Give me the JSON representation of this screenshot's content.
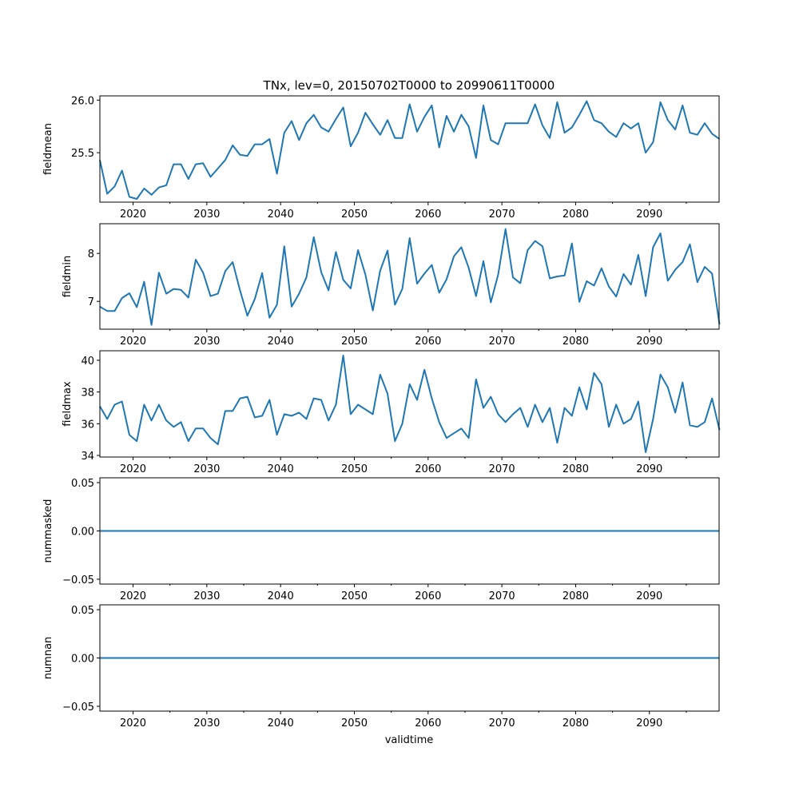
{
  "figure": {
    "title": "TNx, lev=0, 20150702T0000 to 20990611T0000",
    "xlabel": "validtime",
    "line_color": "#1f77b4"
  },
  "chart_data": [
    {
      "type": "line",
      "ylabel": "fieldmean",
      "xlim": [
        2015.5,
        2099.45
      ],
      "ylim": [
        25.03,
        26.04
      ],
      "xticks": [
        2020,
        2030,
        2040,
        2050,
        2060,
        2070,
        2080,
        2090
      ],
      "xtick_labels": [
        "2020",
        "2030",
        "2040",
        "2050",
        "2060",
        "2070",
        "2080",
        "2090"
      ],
      "yticks": [
        25.5,
        26.0
      ],
      "ytick_labels": [
        "25.5",
        "26.0"
      ],
      "x_start": 2015.5,
      "x_step": 1,
      "values": [
        25.43,
        25.11,
        25.18,
        25.33,
        25.08,
        25.06,
        25.16,
        25.1,
        25.17,
        25.19,
        25.39,
        25.39,
        25.25,
        25.39,
        25.4,
        25.27,
        25.35,
        25.43,
        25.57,
        25.48,
        25.47,
        25.58,
        25.58,
        25.63,
        25.3,
        25.69,
        25.8,
        25.62,
        25.78,
        25.86,
        25.74,
        25.7,
        25.82,
        25.93,
        25.56,
        25.69,
        25.88,
        25.77,
        25.67,
        25.81,
        25.64,
        25.64,
        25.96,
        25.7,
        25.84,
        25.95,
        25.55,
        25.85,
        25.7,
        25.86,
        25.75,
        25.45,
        25.95,
        25.62,
        25.58,
        25.78,
        25.78,
        25.78,
        25.78,
        25.96,
        25.76,
        25.64,
        25.98,
        25.69,
        25.74,
        25.86,
        25.99,
        25.81,
        25.78,
        25.7,
        25.65,
        25.78,
        25.73,
        25.78,
        25.5,
        25.6,
        25.98,
        25.81,
        25.72,
        25.95,
        25.69,
        25.67,
        25.78,
        25.68,
        25.63
      ]
    },
    {
      "type": "line",
      "ylabel": "fieldmin",
      "xlim": [
        2015.5,
        2099.45
      ],
      "ylim": [
        6.42,
        8.62
      ],
      "xticks": [
        2020,
        2030,
        2040,
        2050,
        2060,
        2070,
        2080,
        2090
      ],
      "xtick_labels": [
        "2020",
        "2030",
        "2040",
        "2050",
        "2060",
        "2070",
        "2080",
        "2090"
      ],
      "yticks": [
        7,
        8
      ],
      "ytick_labels": [
        "7",
        "8"
      ],
      "x_start": 2015.5,
      "x_step": 1,
      "values": [
        6.89,
        6.8,
        6.8,
        7.07,
        7.17,
        6.88,
        7.41,
        6.51,
        7.6,
        7.16,
        7.26,
        7.24,
        7.08,
        7.87,
        7.6,
        7.11,
        7.16,
        7.63,
        7.82,
        7.23,
        6.7,
        7.05,
        7.59,
        6.66,
        6.93,
        8.15,
        6.89,
        7.16,
        7.5,
        8.34,
        7.61,
        7.23,
        8.03,
        7.45,
        7.27,
        8.07,
        7.56,
        6.81,
        7.64,
        8.06,
        6.93,
        7.26,
        8.32,
        7.37,
        7.58,
        7.76,
        7.18,
        7.46,
        7.94,
        8.13,
        7.7,
        7.11,
        7.84,
        6.98,
        7.56,
        8.51,
        7.5,
        7.38,
        8.07,
        8.26,
        8.15,
        7.48,
        7.52,
        7.54,
        8.21,
        6.99,
        7.42,
        7.33,
        7.69,
        7.31,
        7.1,
        7.57,
        7.35,
        7.97,
        7.11,
        8.13,
        8.42,
        7.43,
        7.66,
        7.82,
        8.19,
        7.4,
        7.72,
        7.58,
        6.52
      ]
    },
    {
      "type": "line",
      "ylabel": "fieldmax",
      "xlim": [
        2015.5,
        2099.45
      ],
      "ylim": [
        33.9,
        40.6
      ],
      "xticks": [
        2020,
        2030,
        2040,
        2050,
        2060,
        2070,
        2080,
        2090
      ],
      "xtick_labels": [
        "2020",
        "2030",
        "2040",
        "2050",
        "2060",
        "2070",
        "2080",
        "2090"
      ],
      "yticks": [
        34,
        36,
        38,
        40
      ],
      "ytick_labels": [
        "34",
        "36",
        "38",
        "40"
      ],
      "x_start": 2015.5,
      "x_step": 1,
      "values": [
        37.1,
        36.3,
        37.2,
        37.4,
        35.3,
        34.9,
        37.2,
        36.2,
        37.2,
        36.2,
        35.8,
        36.1,
        34.9,
        35.7,
        35.7,
        35.1,
        34.7,
        36.8,
        36.8,
        37.6,
        37.7,
        36.4,
        36.5,
        37.5,
        35.3,
        36.6,
        36.5,
        36.7,
        36.3,
        37.6,
        37.5,
        36.2,
        37.2,
        40.3,
        36.6,
        37.2,
        36.9,
        36.6,
        39.1,
        37.9,
        34.9,
        36.0,
        38.5,
        37.5,
        39.4,
        37.6,
        36.1,
        35.1,
        35.4,
        35.7,
        35.1,
        38.8,
        37.0,
        37.7,
        36.6,
        36.1,
        36.6,
        37.0,
        35.8,
        37.2,
        36.1,
        37.0,
        34.8,
        37.0,
        36.5,
        38.3,
        36.9,
        39.2,
        38.5,
        35.8,
        37.2,
        36.0,
        36.3,
        37.4,
        34.2,
        36.3,
        39.1,
        38.3,
        36.7,
        38.6,
        35.9,
        35.8,
        36.1,
        37.6,
        35.6
      ]
    },
    {
      "type": "line",
      "ylabel": "nummasked",
      "xlim": [
        2015.5,
        2099.45
      ],
      "ylim": [
        -0.055,
        0.055
      ],
      "xticks": [
        2020,
        2030,
        2040,
        2050,
        2060,
        2070,
        2080,
        2090
      ],
      "xtick_labels": [
        "2020",
        "2030",
        "2040",
        "2050",
        "2060",
        "2070",
        "2080",
        "2090"
      ],
      "yticks": [
        -0.05,
        0.0,
        0.05
      ],
      "ytick_labels": [
        "−0.05",
        "0.00",
        "0.05"
      ],
      "x_start": 2015.5,
      "x_step": 1,
      "constant_value": 0
    },
    {
      "type": "line",
      "ylabel": "numnan",
      "xlabel": "validtime",
      "xlim": [
        2015.5,
        2099.45
      ],
      "ylim": [
        -0.055,
        0.055
      ],
      "xticks": [
        2020,
        2030,
        2040,
        2050,
        2060,
        2070,
        2080,
        2090
      ],
      "xtick_labels": [
        "2020",
        "2030",
        "2040",
        "2050",
        "2060",
        "2070",
        "2080",
        "2090"
      ],
      "yticks": [
        -0.05,
        0.0,
        0.05
      ],
      "ytick_labels": [
        "−0.05",
        "0.00",
        "0.05"
      ],
      "x_start": 2015.5,
      "x_step": 1,
      "constant_value": 0
    }
  ]
}
